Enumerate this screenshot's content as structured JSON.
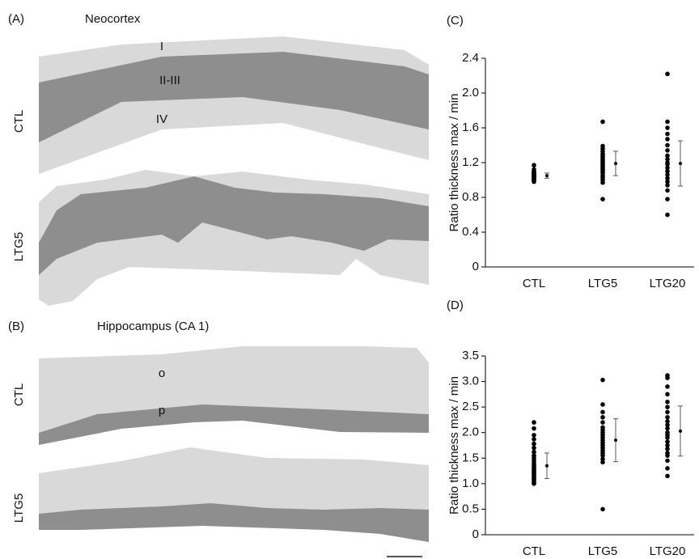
{
  "figure": {
    "panel_a": {
      "label": "(A)",
      "title": "Neocortex",
      "rows": [
        "CTL",
        "LTG5"
      ],
      "layers": [
        "I",
        "II-III",
        "IV"
      ]
    },
    "panel_b": {
      "label": "(B)",
      "title": "Hippocampus (CA 1)",
      "rows": [
        "CTL",
        "LTG5"
      ],
      "layers": [
        "o",
        "p"
      ]
    }
  },
  "chart_data": [
    {
      "type": "strip",
      "label": "(C)",
      "y_label": "Ratio thickness max / min",
      "color": "#000000",
      "categories": [
        "CTL",
        "LTG5",
        "LTG20"
      ],
      "points": [
        [
          0.98,
          1.0,
          1.0,
          1.01,
          1.02,
          1.02,
          1.03,
          1.03,
          1.04,
          1.04,
          1.05,
          1.05,
          1.06,
          1.06,
          1.07,
          1.08,
          1.09,
          1.1,
          1.12,
          1.17
        ],
        [
          0.78,
          0.97,
          1.0,
          1.03,
          1.05,
          1.08,
          1.1,
          1.12,
          1.14,
          1.16,
          1.18,
          1.2,
          1.22,
          1.24,
          1.26,
          1.28,
          1.3,
          1.33,
          1.36,
          1.39,
          1.67
        ],
        [
          0.6,
          0.78,
          0.88,
          0.94,
          0.98,
          1.02,
          1.06,
          1.1,
          1.14,
          1.18,
          1.2,
          1.24,
          1.28,
          1.34,
          1.4,
          1.47,
          1.53,
          1.6,
          1.67,
          2.22
        ]
      ],
      "means": [
        1.05,
        1.19,
        1.19
      ],
      "errors": [
        0.03,
        0.14,
        0.26
      ],
      "ylim": [
        0,
        2.4
      ],
      "yticks": [
        0,
        0.4,
        0.8,
        1.2,
        1.6,
        {
          "value": 2,
          "label": "2.0"
        },
        2.4
      ]
    },
    {
      "type": "strip",
      "label": "(D)",
      "y_label": "Ratio thickness max / min",
      "color": "#000000",
      "categories": [
        "CTL",
        "LTG5",
        "LTG20"
      ],
      "points": [
        [
          1.0,
          1.02,
          1.05,
          1.08,
          1.1,
          1.12,
          1.15,
          1.18,
          1.2,
          1.23,
          1.25,
          1.28,
          1.3,
          1.33,
          1.36,
          1.4,
          1.45,
          1.5,
          1.55,
          1.62,
          1.7,
          1.78,
          1.87,
          1.95,
          2.08,
          2.2
        ],
        [
          0.5,
          1.42,
          1.48,
          1.55,
          1.6,
          1.65,
          1.7,
          1.75,
          1.8,
          1.85,
          1.9,
          1.95,
          2.0,
          2.05,
          2.1,
          2.2,
          2.3,
          2.4,
          2.55,
          3.03
        ],
        [
          1.15,
          1.3,
          1.45,
          1.55,
          1.6,
          1.68,
          1.75,
          1.82,
          1.9,
          1.95,
          2.0,
          2.08,
          2.15,
          2.22,
          2.3,
          2.4,
          2.5,
          2.6,
          2.75,
          2.9,
          3.07,
          3.12
        ]
      ],
      "means": [
        1.35,
        1.85,
        2.03
      ],
      "errors": [
        0.25,
        0.42,
        0.49
      ],
      "ylim": [
        0,
        3.5
      ],
      "yticks": [
        0,
        0.5,
        {
          "value": 1,
          "label": "1.0"
        },
        1.5,
        {
          "value": 2,
          "label": "2.0"
        },
        2.5,
        {
          "value": 3,
          "label": "3.0"
        },
        3.5
      ]
    }
  ]
}
